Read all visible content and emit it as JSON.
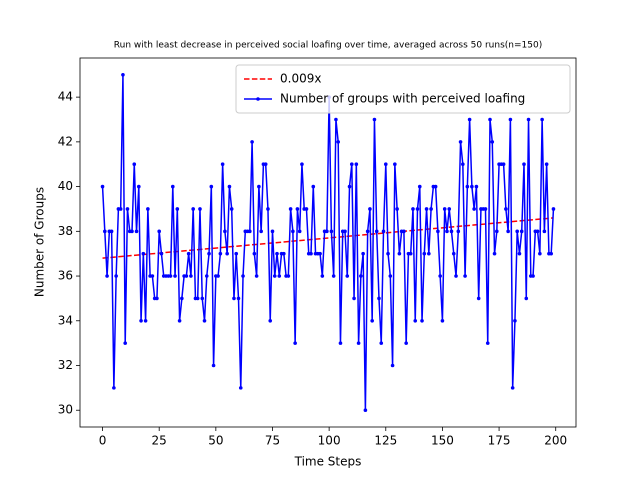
{
  "chart_data": {
    "type": "line",
    "title": "Run with least decrease in perceived social loafing over time, averaged across 50 runs(n=150)",
    "x_label": "Time Steps",
    "y_label": "Number of Groups",
    "xlim": [
      -9.95,
      208.95
    ],
    "ylim": [
      29.25,
      45.75
    ],
    "xticks": [
      0,
      25,
      50,
      75,
      100,
      125,
      150,
      175,
      200
    ],
    "yticks": [
      30,
      32,
      34,
      36,
      38,
      40,
      42,
      44
    ],
    "legend": "upper right",
    "series": [
      {
        "name": "0.009x",
        "color": "#ff0000",
        "linestyle": "dashed",
        "x": [
          0,
          199
        ],
        "values": [
          36.8,
          38.6
        ]
      },
      {
        "name": "Number of groups with perceived loafing",
        "color": "#0000ff",
        "linestyle": "solid",
        "marker": "dot",
        "x": [
          0,
          1,
          2,
          3,
          4,
          5,
          6,
          7,
          8,
          9,
          10,
          11,
          12,
          13,
          14,
          15,
          16,
          17,
          18,
          19,
          20,
          21,
          22,
          23,
          24,
          25,
          26,
          27,
          28,
          29,
          30,
          31,
          32,
          33,
          34,
          35,
          36,
          37,
          38,
          39,
          40,
          41,
          42,
          43,
          44,
          45,
          46,
          47,
          48,
          49,
          50,
          51,
          52,
          53,
          54,
          55,
          56,
          57,
          58,
          59,
          60,
          61,
          62,
          63,
          64,
          65,
          66,
          67,
          68,
          69,
          70,
          71,
          72,
          73,
          74,
          75,
          76,
          77,
          78,
          79,
          80,
          81,
          82,
          83,
          84,
          85,
          86,
          87,
          88,
          89,
          90,
          91,
          92,
          93,
          94,
          95,
          96,
          97,
          98,
          99,
          100,
          101,
          102,
          103,
          104,
          105,
          106,
          107,
          108,
          109,
          110,
          111,
          112,
          113,
          114,
          115,
          116,
          117,
          118,
          119,
          120,
          121,
          122,
          123,
          124,
          125,
          126,
          127,
          128,
          129,
          130,
          131,
          132,
          133,
          134,
          135,
          136,
          137,
          138,
          139,
          140,
          141,
          142,
          143,
          144,
          145,
          146,
          147,
          148,
          149,
          150,
          151,
          152,
          153,
          154,
          155,
          156,
          157,
          158,
          159,
          160,
          161,
          162,
          163,
          164,
          165,
          166,
          167,
          168,
          169,
          170,
          171,
          172,
          173,
          174,
          175,
          176,
          177,
          178,
          179,
          180,
          181,
          182,
          183,
          184,
          185,
          186,
          187,
          188,
          189,
          190,
          191,
          192,
          193,
          194,
          195,
          196,
          197,
          198,
          199
        ],
        "values": [
          40,
          38,
          36,
          38,
          38,
          31,
          36,
          39,
          39,
          45,
          33,
          39,
          38,
          38,
          41,
          38,
          40,
          34,
          37,
          34,
          39,
          36,
          36,
          35,
          35,
          38,
          37,
          36,
          36,
          36,
          36,
          40,
          36,
          39,
          34,
          35,
          36,
          36,
          37,
          36,
          39,
          35,
          35,
          39,
          35,
          34,
          36,
          37,
          40,
          32,
          36,
          36,
          37,
          41,
          38,
          37,
          40,
          39,
          35,
          37,
          35,
          31,
          36,
          38,
          38,
          38,
          42,
          37,
          36,
          40,
          38,
          41,
          41,
          39,
          34,
          38,
          36,
          37,
          36,
          37,
          37,
          36,
          36,
          39,
          38,
          33,
          39,
          38,
          41,
          39,
          39,
          37,
          37,
          40,
          37,
          37,
          37,
          36,
          38,
          38,
          44,
          38,
          36,
          43,
          42,
          33,
          38,
          38,
          36,
          40,
          41,
          35,
          41,
          33,
          36,
          37,
          30,
          38,
          39,
          34,
          43,
          38,
          35,
          33,
          38,
          41,
          37,
          36,
          32,
          41,
          39,
          37,
          38,
          38,
          33,
          37,
          37,
          39,
          34,
          39,
          40,
          34,
          37,
          39,
          37,
          39,
          40,
          40,
          38,
          36,
          34,
          39,
          38,
          39,
          38,
          37,
          36,
          38,
          42,
          41,
          36,
          40,
          43,
          40,
          39,
          40,
          35,
          39,
          39,
          39,
          33,
          43,
          42,
          37,
          38,
          41,
          41,
          41,
          39,
          38,
          43,
          31,
          34,
          38,
          37,
          38,
          41,
          35,
          43,
          36,
          36,
          38,
          38,
          37,
          43,
          38,
          41,
          37,
          37,
          39
        ]
      }
    ]
  }
}
